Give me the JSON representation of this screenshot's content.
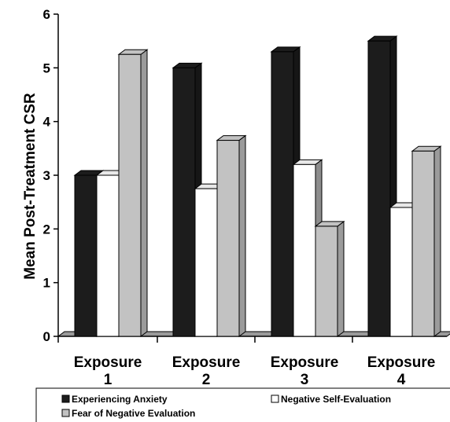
{
  "chart_data": {
    "type": "bar",
    "title": "",
    "xlabel": "",
    "ylabel": "Mean Post-Treatment CSR",
    "ylim": [
      0,
      6
    ],
    "yticks": [
      "0",
      "1",
      "2",
      "3",
      "4",
      "5",
      "6"
    ],
    "categories": [
      [
        "Exposure",
        "1"
      ],
      [
        "Exposure",
        "2"
      ],
      [
        "Exposure",
        "3"
      ],
      [
        "Exposure",
        "4"
      ]
    ],
    "series": [
      {
        "name": "Experiencing Anxiety",
        "color": "#1c1c1c",
        "values": [
          3.0,
          5.0,
          5.3,
          5.5
        ]
      },
      {
        "name": "Negative Self-Evaluation",
        "color": "#ffffff",
        "values": [
          3.0,
          2.75,
          3.2,
          2.4
        ]
      },
      {
        "name": "Fear of Negative Evaluation",
        "color": "#c2c2c2",
        "values": [
          5.25,
          3.65,
          2.05,
          3.45
        ]
      }
    ],
    "grid": false,
    "legend_position": "bottom",
    "style": "3d"
  }
}
